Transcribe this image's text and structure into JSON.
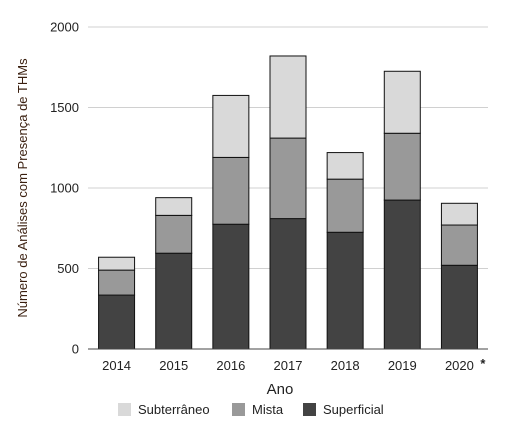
{
  "chart_data": {
    "type": "bar",
    "stacked": true,
    "categories": [
      "2014",
      "2015",
      "2016",
      "2017",
      "2018",
      "2019",
      "2020"
    ],
    "category_suffixes": [
      "",
      "",
      "",
      "",
      "",
      "",
      "*"
    ],
    "series": [
      {
        "name": "Superficial",
        "values": [
          335,
          595,
          775,
          810,
          725,
          925,
          520
        ],
        "color": "#434343"
      },
      {
        "name": "Mista",
        "values": [
          155,
          235,
          415,
          500,
          330,
          415,
          250
        ],
        "color": "#999999"
      },
      {
        "name": "Subterrâneo",
        "values": [
          80,
          110,
          385,
          510,
          165,
          385,
          135
        ],
        "color": "#d9d9d9"
      }
    ],
    "legend_order": [
      "Subterrâneo",
      "Mista",
      "Superficial"
    ],
    "legend_position": "bottom",
    "xlabel": "Ano",
    "ylabel": "Número de Análises com Presença de THMs",
    "ylim": [
      0,
      2000
    ],
    "yticks": [
      "0",
      "500",
      "1000",
      "1500",
      "2000"
    ],
    "grid": true
  }
}
